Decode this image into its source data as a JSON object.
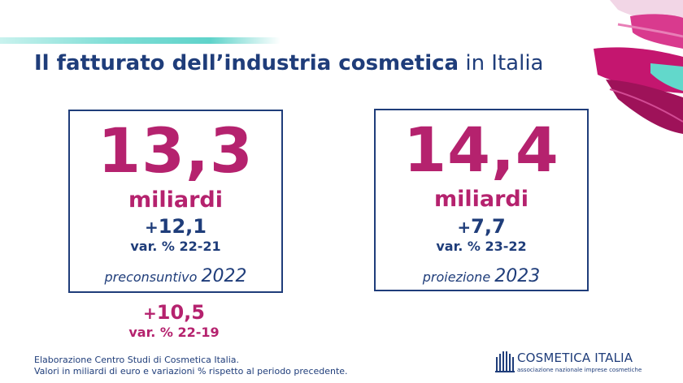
{
  "title": {
    "bold": "Il fatturato dell’industria cosmetica",
    "rest": " in Italia"
  },
  "box_2022": {
    "value": "13,3",
    "unit": "miliardi",
    "variation_sign": "+",
    "variation": "12,1",
    "variation_label": "var. % 22-21",
    "period_word": "preconsuntivo",
    "period_year": "2022"
  },
  "box_2023": {
    "value": "14,4",
    "unit": "miliardi",
    "variation_sign": "+",
    "variation": "7,7",
    "variation_label": "var. % 23-22",
    "period_word": "proiezione",
    "period_year": "2023"
  },
  "extra_2019": {
    "variation_sign": "+",
    "variation": "10,5",
    "variation_label": "var. % 22-19"
  },
  "footer": {
    "line1": "Elaborazione Centro Studi di Cosmetica Italia.",
    "line2": "Valori in miliardi di euro e variazioni % rispetto al periodo precedente."
  },
  "logo": {
    "name": "COSMETICA ITALIA",
    "tagline": "associazione nazionale imprese cosmetiche"
  },
  "colors": {
    "navy": "#1f3d7a",
    "magenta": "#b5226e",
    "teal": "#5fd3ca"
  },
  "icons": {
    "logo_mark": "cosmetica-italia-logo-icon",
    "decoration": "lipstick-brush-stroke-icon"
  }
}
